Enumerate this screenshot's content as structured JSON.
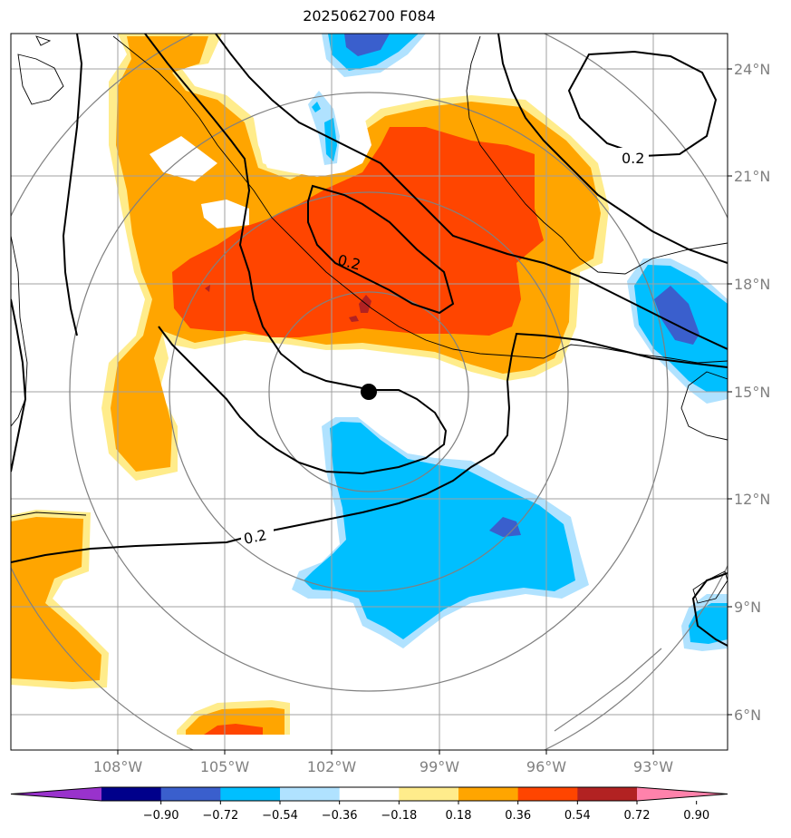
{
  "title": "2025062700 F084",
  "lon_labels": [
    "108°W",
    "105°W",
    "102°W",
    "99°W",
    "96°W",
    "93°W"
  ],
  "lat_labels": [
    "24°N",
    "21°N",
    "18°N",
    "15°N",
    "12°N",
    "9°N",
    "6°N"
  ],
  "contour_labels": [
    "0.2",
    "0.2",
    "0.2"
  ],
  "colorbar": {
    "tick_labels": [
      "−0.90",
      "−0.72",
      "−0.54",
      "−0.36",
      "−0.18",
      "0.18",
      "0.36",
      "0.54",
      "0.72",
      "0.90"
    ],
    "colors": [
      "#9932cc",
      "#00008b",
      "#3a5fcd",
      "#00bfff",
      "#b0e2ff",
      "#ffffff",
      "#ffec8b",
      "#ffa500",
      "#ff4500",
      "#b22222",
      "#ff82ab"
    ]
  },
  "center_marker": {
    "lon": -101,
    "lat": 15
  },
  "range_rings": "concentric"
}
